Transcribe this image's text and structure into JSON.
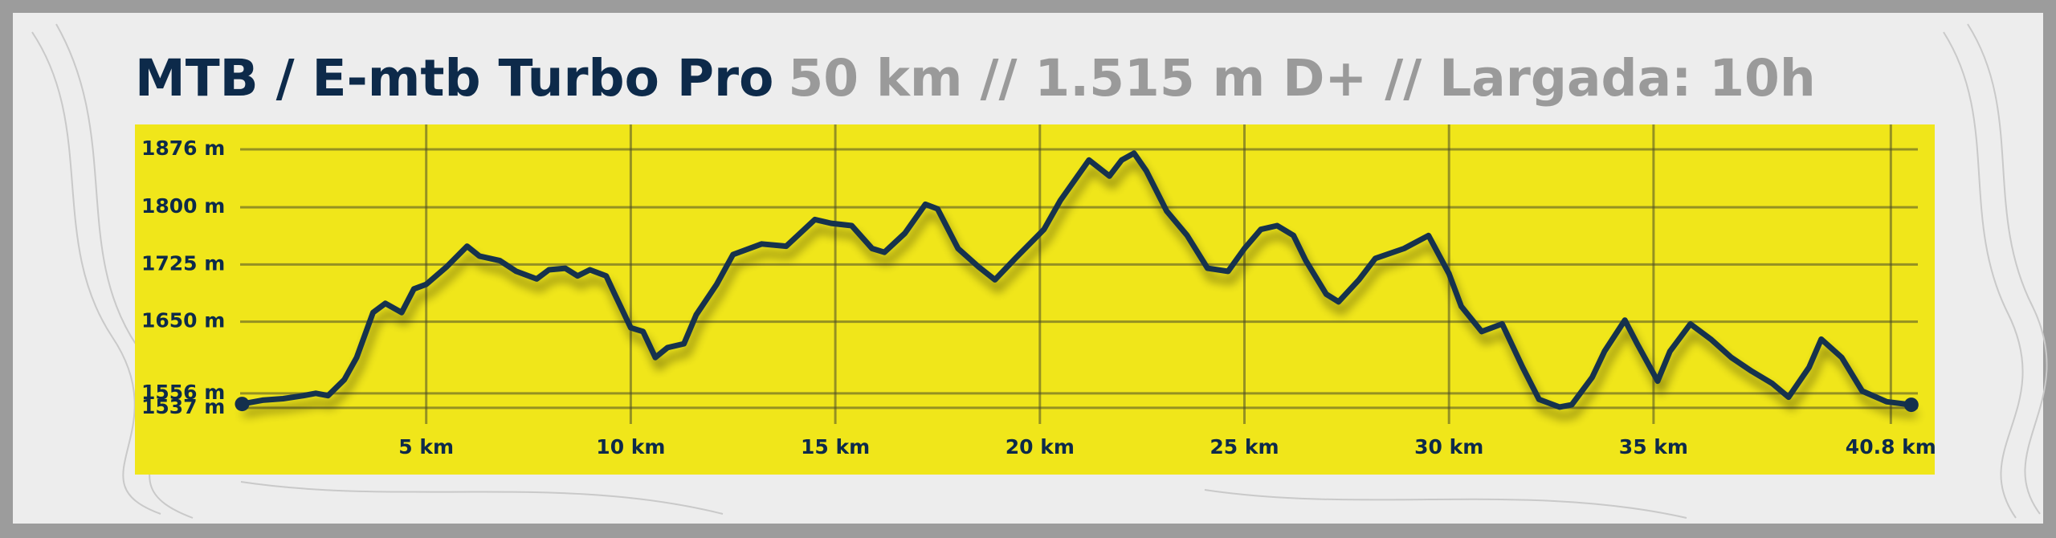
{
  "chart_data": {
    "type": "line",
    "title": "MTB / E-mtb Turbo Pro",
    "subtitle": "50 km // 1.515 m D+ // Largada: 10h",
    "color": "#14304d",
    "grid": true,
    "x": [
      0.5,
      1.0,
      1.5,
      2.0,
      2.3,
      2.6,
      3.0,
      3.3,
      3.7,
      4.0,
      4.4,
      4.7,
      5.0,
      5.5,
      6.0,
      6.3,
      6.8,
      7.2,
      7.7,
      8.0,
      8.4,
      8.7,
      9.0,
      9.4,
      9.6,
      10.0,
      10.3,
      10.6,
      10.9,
      11.3,
      11.6,
      12.1,
      12.5,
      13.2,
      13.8,
      14.5,
      14.9,
      15.4,
      15.9,
      16.2,
      16.7,
      17.2,
      17.5,
      18.0,
      18.5,
      18.9,
      19.4,
      20.1,
      20.5,
      21.2,
      21.7,
      22.0,
      22.3,
      22.6,
      23.1,
      23.6,
      24.1,
      24.6,
      25.0,
      25.4,
      25.8,
      26.2,
      26.5,
      27.0,
      27.3,
      27.8,
      28.2,
      28.9,
      29.5,
      30.0,
      30.3,
      30.8,
      31.3,
      31.8,
      32.2,
      32.7,
      33.0,
      33.5,
      33.8,
      34.3,
      34.6,
      35.1,
      35.4,
      35.9,
      36.4,
      36.9,
      37.4,
      37.9,
      38.3,
      38.8,
      39.1,
      39.6,
      40.1,
      40.7,
      41.3
    ],
    "values": [
      1542,
      1547,
      1549,
      1553,
      1556,
      1553,
      1574,
      1603,
      1662,
      1674,
      1662,
      1693,
      1699,
      1722,
      1749,
      1736,
      1730,
      1716,
      1706,
      1718,
      1720,
      1710,
      1718,
      1710,
      1687,
      1642,
      1637,
      1603,
      1616,
      1621,
      1659,
      1699,
      1738,
      1752,
      1749,
      1784,
      1779,
      1776,
      1746,
      1741,
      1766,
      1804,
      1798,
      1746,
      1722,
      1705,
      1733,
      1771,
      1809,
      1862,
      1841,
      1862,
      1871,
      1848,
      1795,
      1763,
      1720,
      1716,
      1746,
      1771,
      1776,
      1763,
      1730,
      1686,
      1676,
      1705,
      1733,
      1746,
      1763,
      1713,
      1670,
      1637,
      1647,
      1590,
      1548,
      1538,
      1541,
      1577,
      1611,
      1652,
      1621,
      1572,
      1611,
      1647,
      1627,
      1603,
      1585,
      1569,
      1551,
      1590,
      1627,
      1603,
      1559,
      1545,
      1541
    ],
    "xlim": [
      0,
      41.5
    ],
    "ylim": [
      1520,
      1895
    ],
    "xticks": [
      {
        "value": 5,
        "label": "5 km"
      },
      {
        "value": 10,
        "label": "10 km"
      },
      {
        "value": 15,
        "label": "15 km"
      },
      {
        "value": 20,
        "label": "20 km"
      },
      {
        "value": 25,
        "label": "25 km"
      },
      {
        "value": 30,
        "label": "30 km"
      },
      {
        "value": 35,
        "label": "35 km"
      },
      {
        "value": 40.8,
        "label": "40.8 km"
      }
    ],
    "yticks": [
      {
        "value": 1537,
        "label": "1537 m"
      },
      {
        "value": 1556,
        "label": "1556 m"
      },
      {
        "value": 1650,
        "label": "1650 m"
      },
      {
        "value": 1725,
        "label": "1725 m"
      },
      {
        "value": 1800,
        "label": "1800 m"
      },
      {
        "value": 1876,
        "label": "1876 m"
      }
    ]
  }
}
